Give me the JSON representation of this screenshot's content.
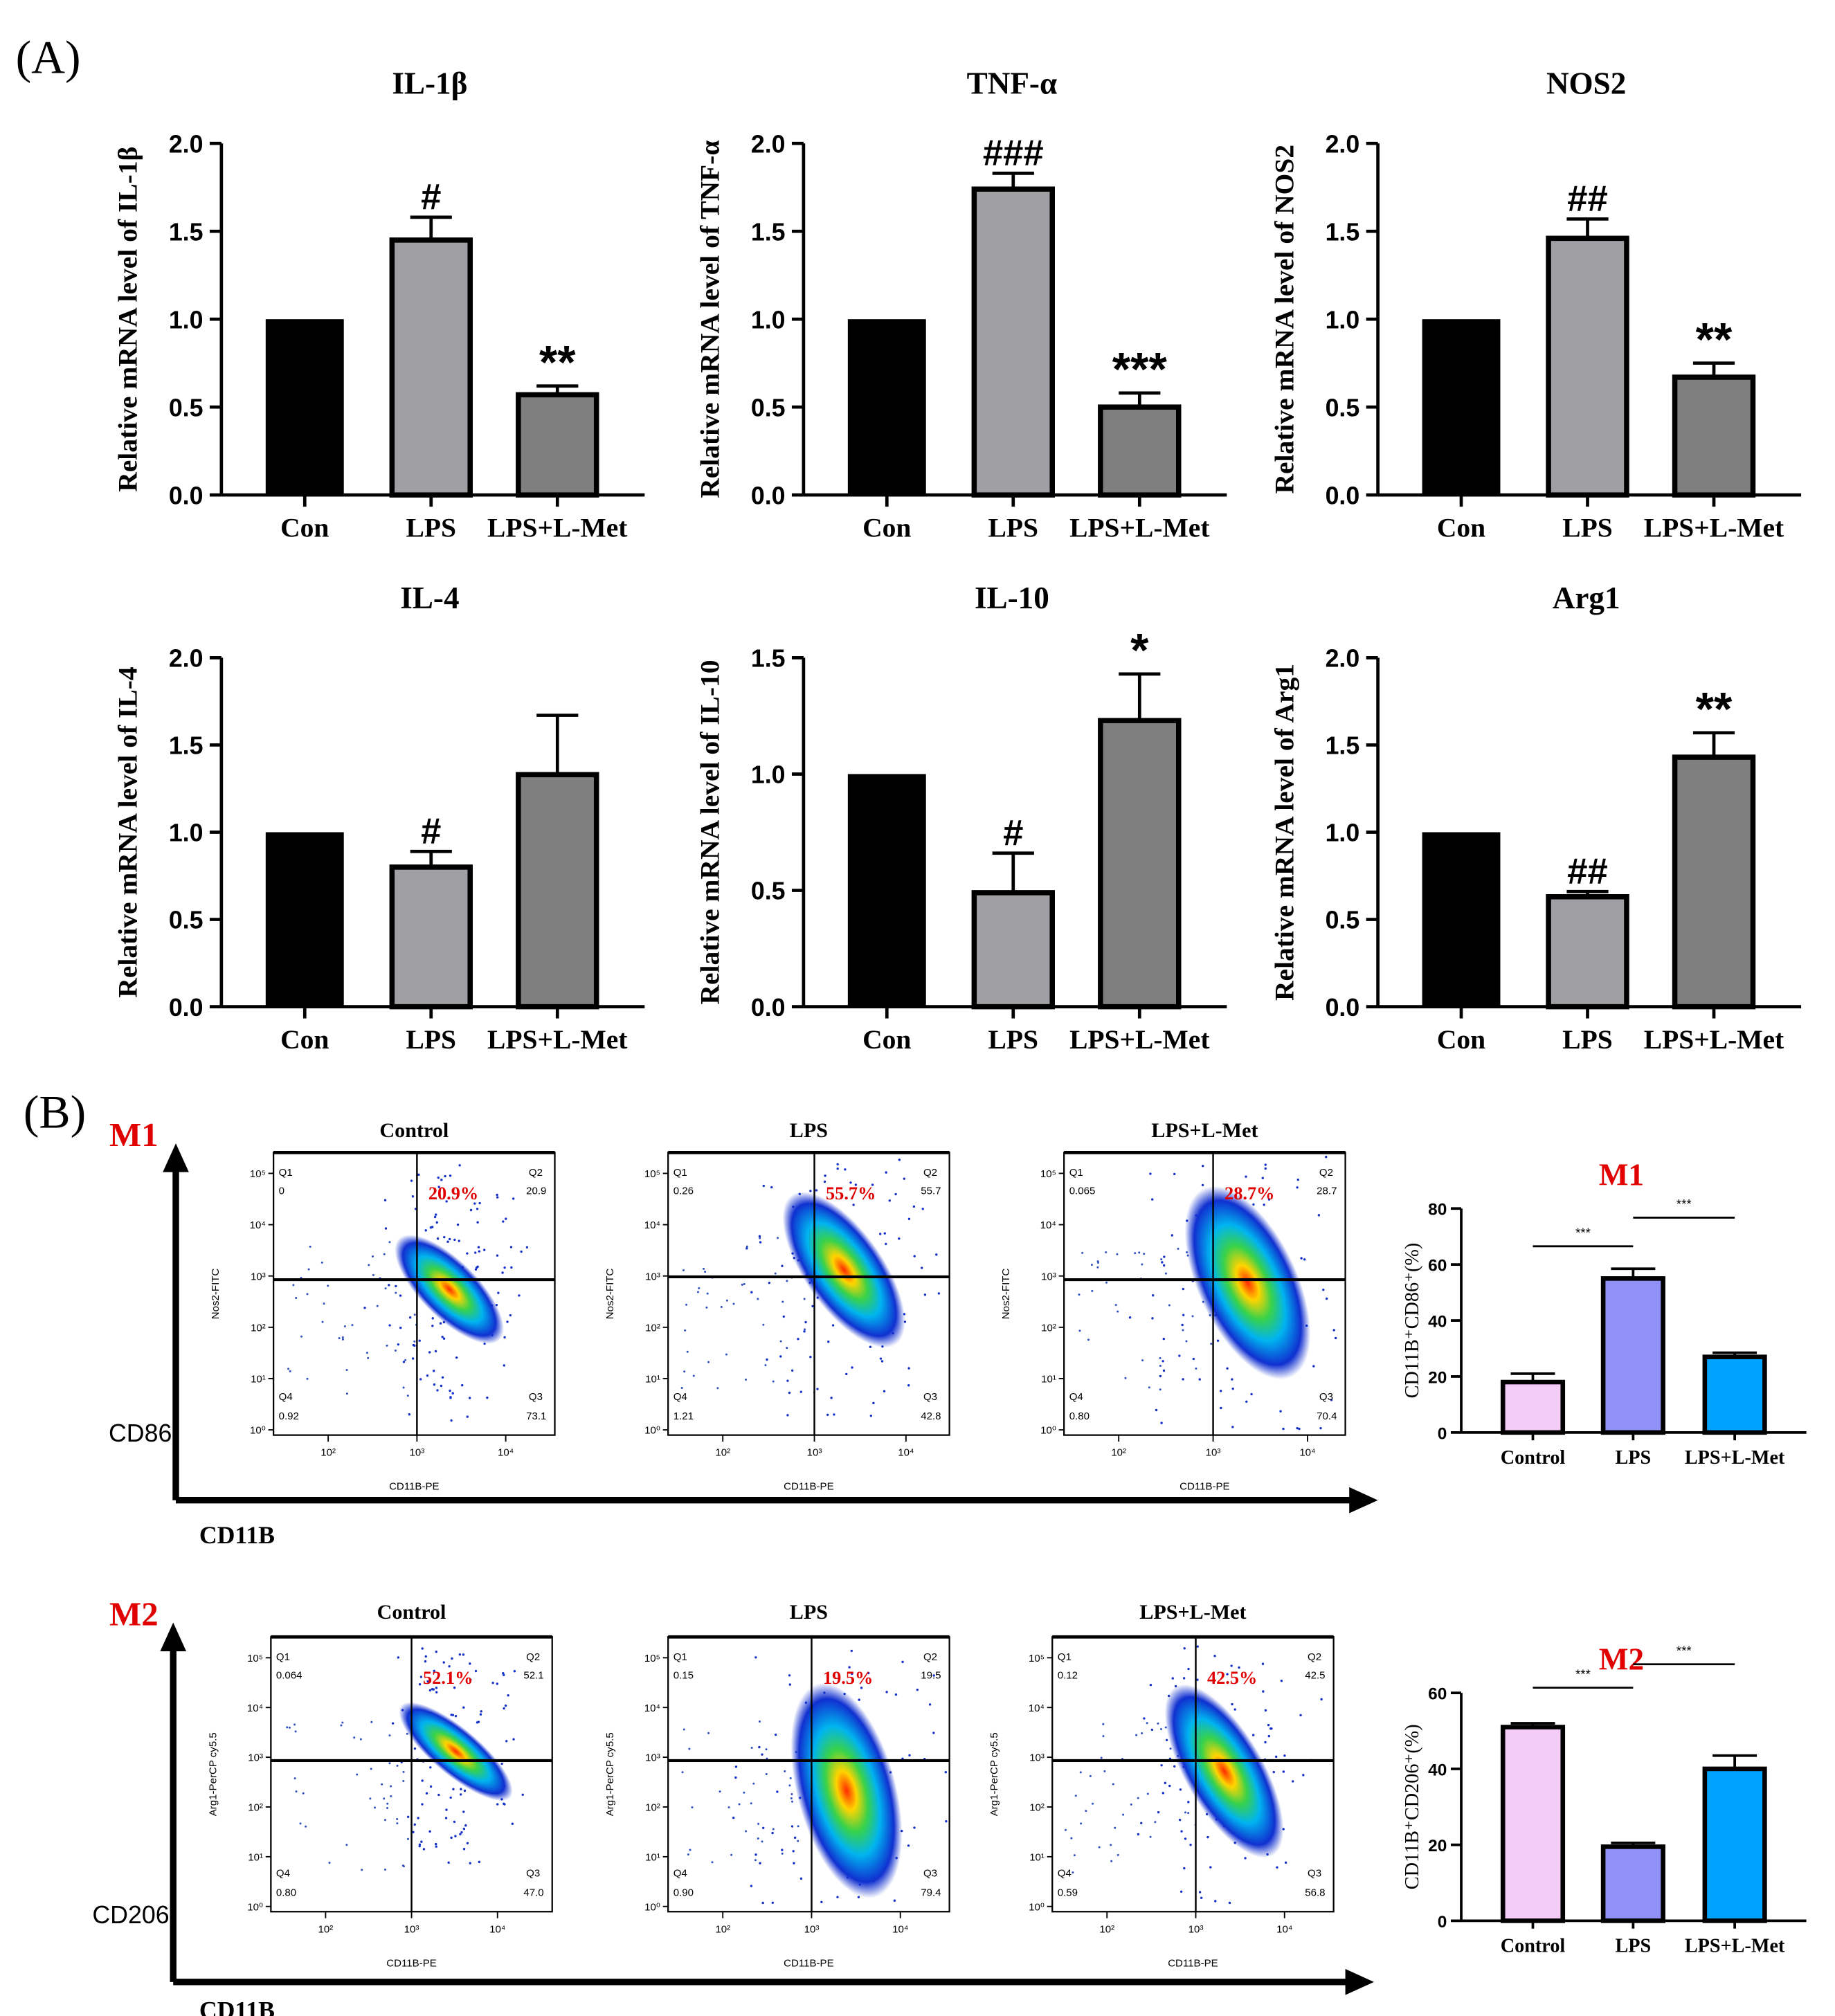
{
  "panel_labels": {
    "a": "(A)",
    "b": "(B)"
  },
  "chart_data": [
    {
      "type": "bar",
      "title": "IL-1β",
      "ylabel": "Relative mRNA level of IL-1β",
      "categories": [
        "Con",
        "LPS",
        "LPS+L-Met"
      ],
      "values": [
        1.0,
        1.45,
        0.57
      ],
      "errors": [
        0,
        0.13,
        0.05
      ],
      "significance": [
        "",
        "#",
        "**"
      ],
      "ylim": [
        0,
        2.0
      ],
      "yticks": [
        "0.0",
        "0.5",
        "1.0",
        "1.5",
        "2.0"
      ]
    },
    {
      "type": "bar",
      "title": "TNF-α",
      "ylabel": "Relative mRNA level of TNF-α",
      "categories": [
        "Con",
        "LPS",
        "LPS+L-Met"
      ],
      "values": [
        1.0,
        1.74,
        0.5
      ],
      "errors": [
        0,
        0.09,
        0.08
      ],
      "significance": [
        "",
        "###",
        "***"
      ],
      "ylim": [
        0,
        2.0
      ],
      "yticks": [
        "0.0",
        "0.5",
        "1.0",
        "1.5",
        "2.0"
      ]
    },
    {
      "type": "bar",
      "title": "NOS2",
      "ylabel": "Relative mRNA level of NOS2",
      "categories": [
        "Con",
        "LPS",
        "LPS+L-Met"
      ],
      "values": [
        1.0,
        1.46,
        0.67
      ],
      "errors": [
        0,
        0.11,
        0.08
      ],
      "significance": [
        "",
        "##",
        "**"
      ],
      "ylim": [
        0,
        2.0
      ],
      "yticks": [
        "0.0",
        "0.5",
        "1.0",
        "1.5",
        "2.0"
      ]
    },
    {
      "type": "bar",
      "title": "IL-4",
      "ylabel": "Relative mRNA level of IL-4",
      "categories": [
        "Con",
        "LPS",
        "LPS+L-Met"
      ],
      "values": [
        1.0,
        0.8,
        1.33
      ],
      "errors": [
        0,
        0.09,
        0.34
      ],
      "significance": [
        "",
        "#",
        ""
      ],
      "ylim": [
        0,
        2.0
      ],
      "yticks": [
        "0.0",
        "0.5",
        "1.0",
        "1.5",
        "2.0"
      ]
    },
    {
      "type": "bar",
      "title": "IL-10",
      "ylabel": "Relative mRNA level of IL-10",
      "categories": [
        "Con",
        "LPS",
        "LPS+L-Met"
      ],
      "values": [
        1.0,
        0.49,
        1.23
      ],
      "errors": [
        0,
        0.17,
        0.2
      ],
      "significance": [
        "",
        "#",
        "*"
      ],
      "ylim": [
        0,
        1.5
      ],
      "yticks": [
        "0.0",
        "0.5",
        "1.0",
        "1.5"
      ]
    },
    {
      "type": "bar",
      "title": "Arg1",
      "ylabel": "Relative mRNA level of Arg1",
      "categories": [
        "Con",
        "LPS",
        "LPS+L-Met"
      ],
      "values": [
        1.0,
        0.63,
        1.43
      ],
      "errors": [
        0,
        0.03,
        0.14
      ],
      "significance": [
        "",
        "##",
        "**"
      ],
      "ylim": [
        0,
        2.0
      ],
      "yticks": [
        "0.0",
        "0.5",
        "1.0",
        "1.5",
        "2.0"
      ]
    },
    {
      "type": "bar",
      "title": "M1",
      "ylabel": "CD11B⁺CD86⁺(%)",
      "categories": [
        "Control",
        "LPS",
        "LPS+L-Met"
      ],
      "values": [
        18,
        55,
        27
      ],
      "errors": [
        3,
        3.5,
        1.5
      ],
      "colors": [
        "#f5ccf7",
        "#9090f8",
        "#00a2ff"
      ],
      "comparisons": [
        {
          "pair": [
            0,
            1
          ],
          "label": "***"
        },
        {
          "pair": [
            1,
            2
          ],
          "label": "***"
        }
      ],
      "ylim": [
        0,
        80
      ],
      "yticks": [
        "0",
        "20",
        "40",
        "60",
        "80"
      ]
    },
    {
      "type": "bar",
      "title": "M2",
      "ylabel": "CD11B⁺CD206⁺(%)",
      "categories": [
        "Control",
        "LPS",
        "LPS+L-Met"
      ],
      "values": [
        51,
        19.5,
        40
      ],
      "errors": [
        1,
        1,
        3.5
      ],
      "colors": [
        "#f5ccf7",
        "#9090f8",
        "#00a2ff"
      ],
      "comparisons": [
        {
          "pair": [
            0,
            1
          ],
          "label": "***"
        },
        {
          "pair": [
            1,
            2
          ],
          "label": "***"
        }
      ],
      "ylim": [
        0,
        60
      ],
      "yticks": [
        "0",
        "20",
        "40",
        "60"
      ]
    }
  ],
  "bar_colors": [
    "#000000",
    "#a0a0a4",
    "#7f7f7f"
  ],
  "flow_cytometry": {
    "rows": [
      {
        "label": "M1",
        "y_axis_marker": "CD86",
        "x_axis_marker": "CD11B",
        "plots": [
          {
            "title": "Control",
            "ylabel": "Nos2-FITC",
            "xlabel": "CD11B-PE",
            "q1": "0",
            "q2": "20.9",
            "q3": "73.1",
            "q4": "0.92",
            "highlight": "20.9%"
          },
          {
            "title": "LPS",
            "ylabel": "Nos2-FITC",
            "xlabel": "CD11B-PE",
            "q1": "0.26",
            "q2": "55.7",
            "q3": "42.8",
            "q4": "1.21",
            "highlight": "55.7%"
          },
          {
            "title": "LPS+L-Met",
            "ylabel": "Nos2-FITC",
            "xlabel": "CD11B-PE",
            "q1": "0.065",
            "q2": "28.7",
            "q3": "70.4",
            "q4": "0.80",
            "highlight": "28.7%"
          }
        ]
      },
      {
        "label": "M2",
        "y_axis_marker": "CD206",
        "x_axis_marker": "CD11B",
        "plots": [
          {
            "title": "Control",
            "ylabel": "Arg1-PerCP cy5.5",
            "xlabel": "CD11B-PE",
            "q1": "0.064",
            "q2": "52.1",
            "q3": "47.0",
            "q4": "0.80",
            "highlight": "52.1%"
          },
          {
            "title": "LPS",
            "ylabel": "Arg1-PerCP cy5.5",
            "xlabel": "CD11B-PE",
            "q1": "0.15",
            "q2": "19.5",
            "q3": "79.4",
            "q4": "0.90",
            "highlight": "19.5%"
          },
          {
            "title": "LPS+L-Met",
            "ylabel": "Arg1-PerCP cy5.5",
            "xlabel": "CD11B-PE",
            "q1": "0.12",
            "q2": "42.5",
            "q3": "56.8",
            "q4": "0.59",
            "highlight": "42.5%"
          }
        ]
      }
    ],
    "quadrant_names": [
      "Q1",
      "Q2",
      "Q3",
      "Q4"
    ],
    "y_ticks": [
      "10⁰",
      "10¹",
      "10²",
      "10³",
      "10⁴",
      "10⁵"
    ],
    "x_ticks": [
      "10²",
      "10³",
      "10⁴"
    ]
  }
}
